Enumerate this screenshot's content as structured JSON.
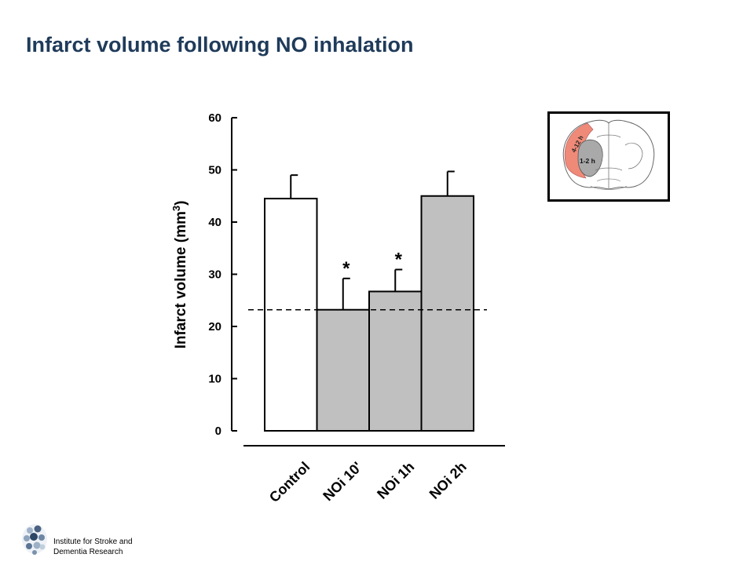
{
  "title": "Infarct volume following NO inhalation",
  "institute": {
    "line1": "Institute for Stroke and",
    "line2": "Dementia Research"
  },
  "inset": {
    "label_outer": "4-12 h",
    "label_inner": "1-2 h"
  },
  "chart_data": {
    "type": "bar",
    "title": "",
    "ylabel": "Infarct volume (mm",
    "ylabel_superscript": "3",
    "ylabel_close": ")",
    "xlabel": "",
    "ylim": [
      0,
      60
    ],
    "yticks": [
      0,
      10,
      20,
      30,
      40,
      50,
      60
    ],
    "categories": [
      "Control",
      "NOi 10'",
      "NOi 1h",
      "NOi 2h"
    ],
    "values": [
      44.5,
      23.2,
      26.7,
      45.0
    ],
    "errors": [
      4.5,
      6.0,
      4.2,
      4.7
    ],
    "significance": [
      "",
      "*",
      "*",
      ""
    ],
    "bar_colors": [
      "#ffffff",
      "#c0c0c0",
      "#c0c0c0",
      "#c0c0c0"
    ],
    "reference_line": 23.2,
    "grid": false
  }
}
